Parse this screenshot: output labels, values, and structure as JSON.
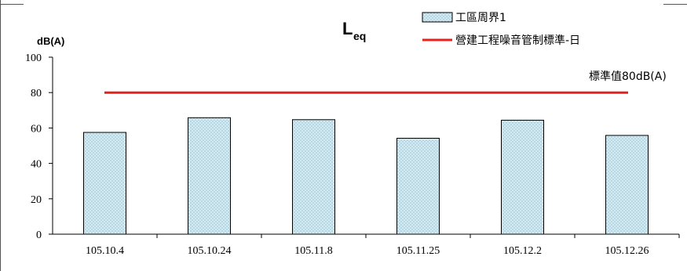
{
  "chart_data": {
    "type": "bar",
    "title_main": "L",
    "title_sub": "eq",
    "ylabel": "dB(A)",
    "ylim": [
      0,
      100
    ],
    "yticks": [
      "0",
      "20",
      "40",
      "60",
      "80",
      "100"
    ],
    "categories": [
      "105.10.4",
      "105.10.24",
      "105.11.8",
      "105.11.25",
      "105.12.2",
      "105.12.26"
    ],
    "series": [
      {
        "name": "工區周界1",
        "values": [
          57.5,
          65.8,
          64.7,
          54.2,
          64.4,
          55.8
        ]
      }
    ],
    "reference_line": {
      "name": "營建工程噪音管制標準-日",
      "value": 80,
      "color": "#e8201c"
    },
    "annotation": "標準值80dB(A)",
    "bar_fill": "#d2eaf2",
    "bar_stroke": "#000000",
    "grid": false,
    "legend_position": "top-right"
  }
}
